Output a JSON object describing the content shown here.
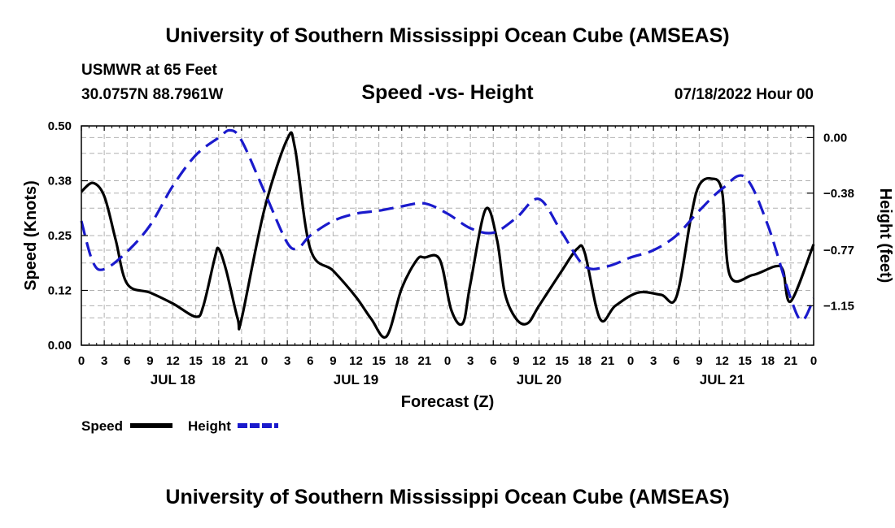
{
  "header": {
    "title": "University of Southern Mississippi Ocean Cube (AMSEAS)",
    "station": "USMWR at 65 Feet",
    "coords": "30.0757N  88.7961W",
    "subtitle": "Speed -vs- Height",
    "datetime": "07/18/2022 Hour 00"
  },
  "footer": {
    "title": "University of Southern Mississippi Ocean Cube (AMSEAS)"
  },
  "colors": {
    "speed": "#000000",
    "height": "#1a1acc",
    "grid": "#b0b0b0"
  },
  "chart_data": {
    "type": "line",
    "title": "Speed -vs- Height",
    "xlabel": "Forecast (Z)",
    "ylabel": "Speed (Knots)",
    "ylabel_right": "Height (feet)",
    "xlim": [
      0,
      96
    ],
    "ylim": [
      0,
      0.5
    ],
    "ylim_right": [
      -1.42,
      0.08
    ],
    "yticks_left": [
      {
        "value": 0.0,
        "label": "0.00"
      },
      {
        "value": 0.125,
        "label": "0.12"
      },
      {
        "value": 0.25,
        "label": "0.25"
      },
      {
        "value": 0.375,
        "label": "0.38"
      },
      {
        "value": 0.5,
        "label": "0.50"
      }
    ],
    "yticks_right": [
      {
        "value": 0.0,
        "label": "0.00"
      },
      {
        "value": -0.38,
        "label": "−0.38"
      },
      {
        "value": -0.77,
        "label": "−0.77"
      },
      {
        "value": -1.15,
        "label": "−1.15"
      }
    ],
    "x_tick_labels": [
      "0",
      "3",
      "6",
      "9",
      "12",
      "15",
      "18",
      "21",
      "0",
      "3",
      "6",
      "9",
      "12",
      "15",
      "18",
      "21",
      "0",
      "3",
      "6",
      "9",
      "12",
      "15",
      "18",
      "21",
      "0",
      "3",
      "6",
      "9",
      "12",
      "15",
      "18",
      "21",
      "0"
    ],
    "day_labels": [
      {
        "hour": 12,
        "label": "JUL 18"
      },
      {
        "hour": 36,
        "label": "JUL 19"
      },
      {
        "hour": 60,
        "label": "JUL 20"
      },
      {
        "hour": 84,
        "label": "JUL 21"
      }
    ],
    "legend": [
      {
        "name": "Speed",
        "series": "speed"
      },
      {
        "name": "Height",
        "series": "height"
      }
    ],
    "series": [
      {
        "name": "Speed",
        "axis": "left",
        "style": "solid",
        "x": [
          0,
          1.5,
          3,
          4.5,
          6,
          9,
          12,
          15,
          16,
          17.5,
          18,
          19,
          20.5,
          21,
          24,
          27,
          28,
          30,
          33,
          36,
          38,
          40,
          42,
          44,
          45,
          47,
          48.5,
          50,
          51,
          53,
          54.5,
          55.5,
          57,
          58.5,
          60,
          63,
          65,
          66,
          68,
          70,
          73,
          76,
          78,
          80,
          81,
          82.5,
          84,
          85,
          88,
          91,
          92,
          93,
          96
        ],
        "values": [
          0.35,
          0.37,
          0.34,
          0.24,
          0.14,
          0.12,
          0.095,
          0.065,
          0.09,
          0.2,
          0.22,
          0.17,
          0.06,
          0.06,
          0.31,
          0.47,
          0.45,
          0.22,
          0.17,
          0.11,
          0.06,
          0.02,
          0.13,
          0.195,
          0.2,
          0.195,
          0.08,
          0.05,
          0.14,
          0.31,
          0.24,
          0.12,
          0.06,
          0.05,
          0.09,
          0.17,
          0.22,
          0.21,
          0.06,
          0.09,
          0.12,
          0.115,
          0.11,
          0.3,
          0.365,
          0.38,
          0.35,
          0.16,
          0.16,
          0.18,
          0.17,
          0.1,
          0.23
        ]
      },
      {
        "name": "Height",
        "axis": "right",
        "style": "dashed",
        "x": [
          0,
          1.5,
          3,
          6,
          9,
          12,
          15,
          18,
          19.5,
          21,
          24,
          27,
          28.5,
          30,
          33,
          36,
          39,
          42,
          45,
          48,
          51,
          54,
          57,
          60,
          63,
          66,
          69,
          72,
          75,
          78,
          81,
          84,
          87,
          90,
          93,
          94.5,
          96
        ],
        "values": [
          -0.57,
          -0.85,
          -0.9,
          -0.78,
          -0.6,
          -0.33,
          -0.12,
          0.0,
          0.05,
          -0.02,
          -0.37,
          -0.72,
          -0.75,
          -0.67,
          -0.57,
          -0.52,
          -0.5,
          -0.47,
          -0.45,
          -0.52,
          -0.62,
          -0.65,
          -0.55,
          -0.42,
          -0.65,
          -0.88,
          -0.88,
          -0.82,
          -0.77,
          -0.67,
          -0.5,
          -0.35,
          -0.27,
          -0.6,
          -1.1,
          -1.25,
          -1.1
        ]
      }
    ]
  }
}
